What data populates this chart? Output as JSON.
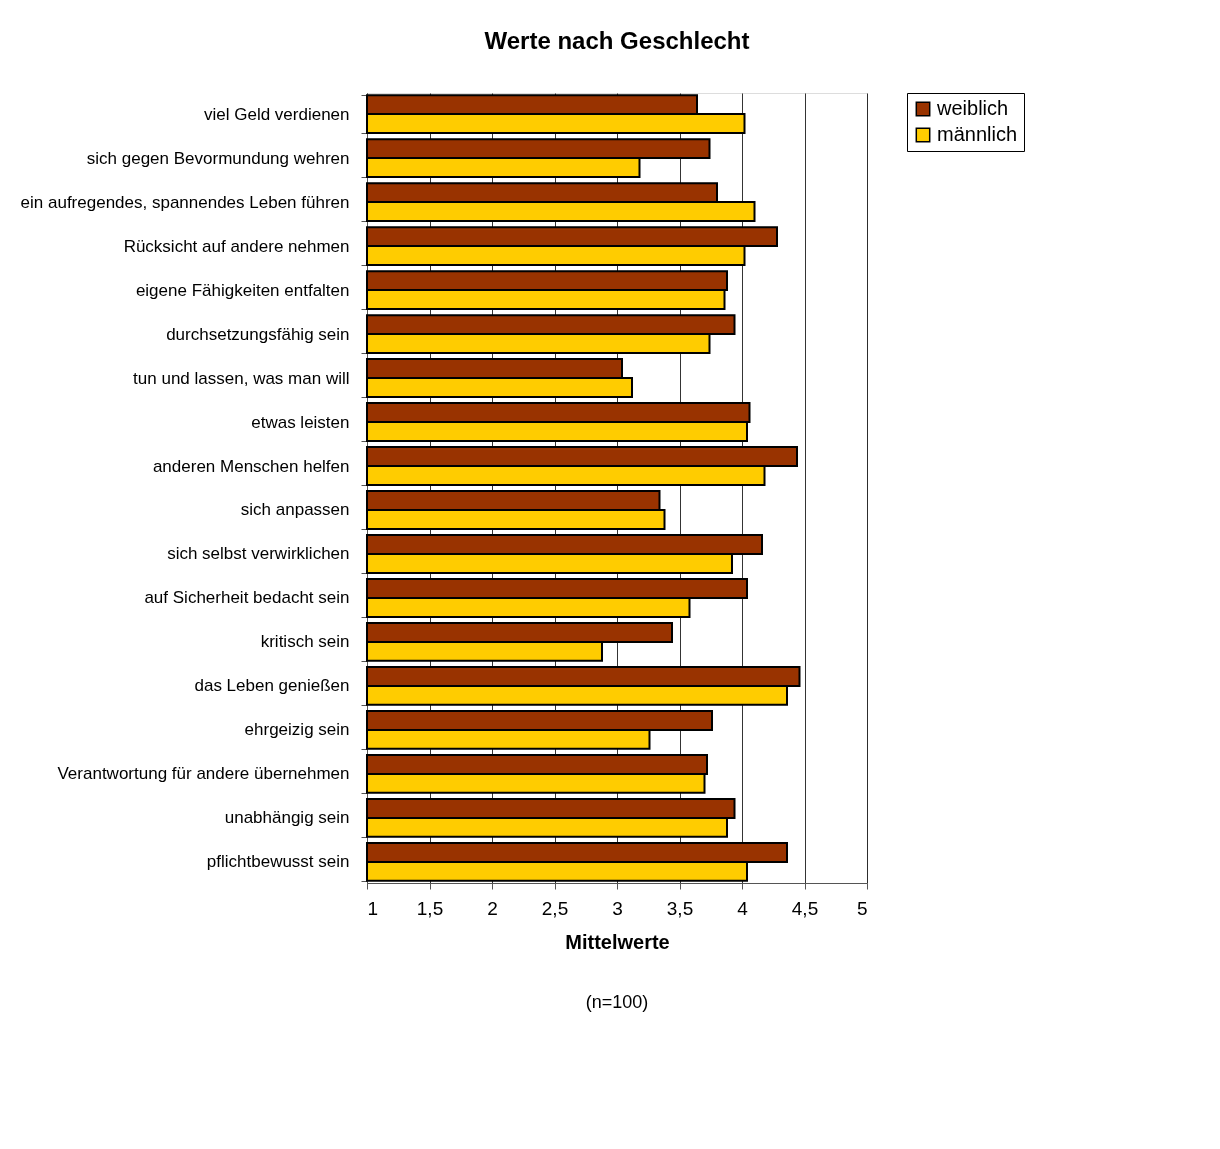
{
  "chart_data": {
    "type": "bar",
    "orientation": "horizontal",
    "title": "Werte nach Geschlecht",
    "xlabel": "Mittelwerte",
    "categories": [
      "viel Geld verdienen",
      "sich gegen Bevormundung wehren",
      "ein aufregendes, spannendes Leben führen",
      "Rücksicht auf andere nehmen",
      "eigene Fähigkeiten entfalten",
      "durchsetzungsfähig sein",
      "tun und lassen, was man will",
      "etwas leisten",
      "anderen Menschen helfen",
      "sich anpassen",
      "sich selbst verwirklichen",
      "auf Sicherheit bedacht sein",
      "kritisch sein",
      "das Leben genießen",
      "ehrgeizig sein",
      "Verantwortung für andere übernehmen",
      "unabhängig sein",
      "pflichtbewusst sein"
    ],
    "series": [
      {
        "name": "weiblich",
        "color": "#993300",
        "values": [
          3.64,
          3.74,
          3.8,
          4.28,
          3.88,
          3.94,
          3.04,
          4.06,
          4.44,
          3.34,
          4.16,
          4.04,
          3.44,
          4.46,
          3.76,
          3.72,
          3.94,
          4.36
        ]
      },
      {
        "name": "männlich",
        "color": "#ffcc00",
        "values": [
          4.02,
          3.18,
          4.1,
          4.02,
          3.86,
          3.74,
          3.12,
          4.04,
          4.18,
          3.38,
          3.92,
          3.58,
          2.88,
          4.36,
          3.26,
          3.7,
          3.88,
          4.04
        ]
      }
    ],
    "xlim": [
      1,
      5
    ],
    "xticks": [
      1,
      {
        "value": 1.5,
        "label": "1,5"
      },
      2,
      {
        "value": 2.5,
        "label": "2,5"
      },
      3,
      {
        "value": 3.5,
        "label": "3,5"
      },
      4,
      {
        "value": 4.5,
        "label": "4,5"
      },
      5
    ],
    "grid": "x",
    "legend": "right",
    "annotations": [
      "(n=100)"
    ]
  }
}
